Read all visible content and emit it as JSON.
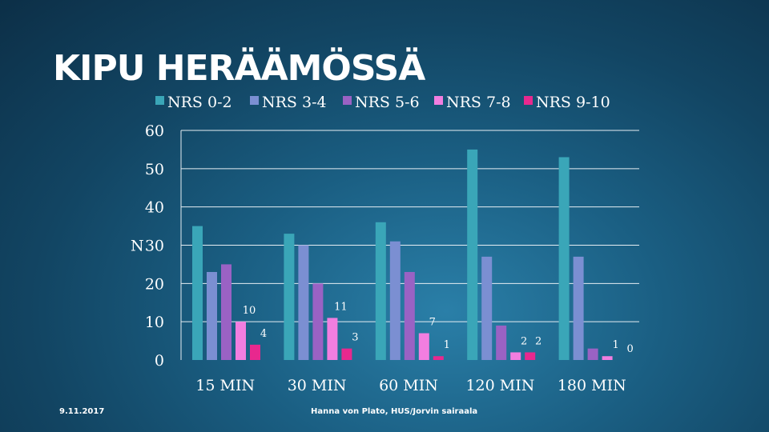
{
  "title": "KIPU HERÄÄMÖSSÄ",
  "footer": {
    "date": "9.11.2017",
    "source": "Hanna von Plato, HUS/Jorvin sairaala"
  },
  "chart_data": {
    "type": "bar",
    "title": "KIPU HERÄÄMÖSSÄ",
    "xlabel": "",
    "ylabel": "N",
    "ylim": [
      0,
      60
    ],
    "yticks": [
      0,
      10,
      20,
      30,
      40,
      50,
      60
    ],
    "grid": true,
    "legend_position": "top",
    "categories": [
      "15 MIN",
      "30 MIN",
      "60 MIN",
      "120 MIN",
      "180 MIN"
    ],
    "series": [
      {
        "name": "NRS 0-2",
        "color": "#3aa6b8",
        "values": [
          35,
          33,
          36,
          55,
          53
        ]
      },
      {
        "name": "NRS 3-4",
        "color": "#7b8fd2",
        "values": [
          23,
          30,
          31,
          27,
          27
        ]
      },
      {
        "name": "NRS 5-6",
        "color": "#9a62c4",
        "values": [
          25,
          20,
          23,
          9,
          3
        ]
      },
      {
        "name": "NRS 7-8",
        "color": "#f27ee0",
        "values": [
          10,
          11,
          7,
          2,
          1
        ]
      },
      {
        "name": "NRS 9-10",
        "color": "#e8288e",
        "values": [
          4,
          3,
          1,
          2,
          0
        ]
      }
    ],
    "data_labels": [
      {
        "series": 3,
        "category": 0,
        "text": "10"
      },
      {
        "series": 4,
        "category": 0,
        "text": "4"
      },
      {
        "series": 3,
        "category": 1,
        "text": "11"
      },
      {
        "series": 4,
        "category": 1,
        "text": "3"
      },
      {
        "series": 3,
        "category": 2,
        "text": "7"
      },
      {
        "series": 4,
        "category": 2,
        "text": "1"
      },
      {
        "series": 3,
        "category": 3,
        "text": "2"
      },
      {
        "series": 4,
        "category": 3,
        "text": "2"
      },
      {
        "series": 3,
        "category": 4,
        "text": "1"
      },
      {
        "series": 4,
        "category": 4,
        "text": "0"
      }
    ]
  }
}
